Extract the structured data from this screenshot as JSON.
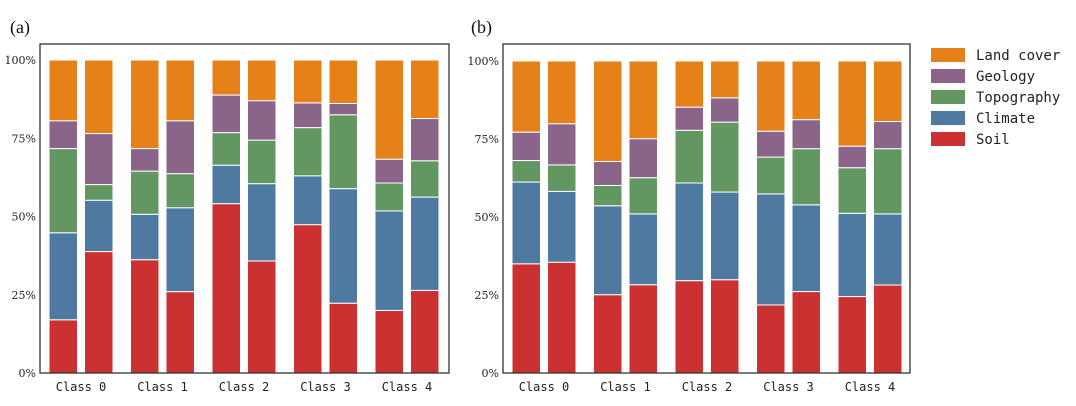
{
  "colors": {
    "Soil": "#CC3132",
    "Climate": "#4E79A1",
    "Topography": "#629762",
    "Geology": "#8A6589",
    "Land cover": "#E6811A"
  },
  "legend": {
    "entries": [
      "Land cover",
      "Geology",
      "Topography",
      "Climate",
      "Soil"
    ],
    "placement": "right"
  },
  "chart_data": [
    {
      "type": "bar",
      "stacked": true,
      "panel_label": "(a)",
      "categories": [
        "Class 0",
        "Class 1",
        "Class 2",
        "Class 3",
        "Class 4"
      ],
      "bars_per_category": 2,
      "yticks": [
        "0%",
        "25%",
        "50%",
        "75%",
        "100%"
      ],
      "ylim": [
        0,
        100
      ],
      "grid": false,
      "series": [
        {
          "name": "Soil",
          "values": [
            [
              17.0,
              38.8
            ],
            [
              36.2,
              26.0
            ],
            [
              54.1,
              35.8
            ],
            [
              47.4,
              22.3
            ],
            [
              20.0,
              26.4
            ]
          ]
        },
        {
          "name": "Climate",
          "values": [
            [
              27.8,
              16.4
            ],
            [
              14.5,
              26.8
            ],
            [
              12.3,
              24.7
            ],
            [
              15.6,
              36.6
            ],
            [
              31.8,
              29.8
            ]
          ]
        },
        {
          "name": "Topography",
          "values": [
            [
              26.9,
              5.0
            ],
            [
              13.8,
              10.9
            ],
            [
              10.4,
              13.9
            ],
            [
              15.4,
              23.6
            ],
            [
              8.9,
              11.6
            ]
          ]
        },
        {
          "name": "Geology",
          "values": [
            [
              8.9,
              16.3
            ],
            [
              7.2,
              16.9
            ],
            [
              12.0,
              12.6
            ],
            [
              7.9,
              3.6
            ],
            [
              7.6,
              13.5
            ]
          ]
        },
        {
          "name": "Land cover",
          "values": [
            [
              19.4,
              23.5
            ],
            [
              28.3,
              19.4
            ],
            [
              11.2,
              13.0
            ],
            [
              13.7,
              13.9
            ],
            [
              31.7,
              18.7
            ]
          ]
        }
      ]
    },
    {
      "type": "bar",
      "stacked": true,
      "panel_label": "(b)",
      "categories": [
        "Class 0",
        "Class 1",
        "Class 2",
        "Class 3",
        "Class 4"
      ],
      "bars_per_category": 2,
      "yticks": [
        "0%",
        "25%",
        "50%",
        "75%",
        "100%"
      ],
      "ylim": [
        0,
        100
      ],
      "grid": false,
      "series": [
        {
          "name": "Soil",
          "values": [
            [
              35.0,
              35.5
            ],
            [
              25.1,
              28.3
            ],
            [
              29.6,
              29.9
            ],
            [
              21.8,
              26.1
            ],
            [
              24.5,
              28.2
            ]
          ]
        },
        {
          "name": "Climate",
          "values": [
            [
              26.2,
              22.7
            ],
            [
              28.5,
              22.7
            ],
            [
              31.3,
              28.1
            ],
            [
              35.6,
              27.8
            ],
            [
              26.7,
              22.8
            ]
          ]
        },
        {
          "name": "Topography",
          "values": [
            [
              6.9,
              8.5
            ],
            [
              6.5,
              11.6
            ],
            [
              16.9,
              22.4
            ],
            [
              11.8,
              18.0
            ],
            [
              14.6,
              20.9
            ]
          ]
        },
        {
          "name": "Geology",
          "values": [
            [
              9.1,
              13.2
            ],
            [
              7.7,
              12.5
            ],
            [
              7.4,
              7.8
            ],
            [
              8.3,
              9.3
            ],
            [
              6.9,
              8.7
            ]
          ]
        },
        {
          "name": "Land cover",
          "values": [
            [
              22.8,
              20.1
            ],
            [
              32.2,
              24.9
            ],
            [
              14.8,
              11.8
            ],
            [
              22.5,
              18.8
            ],
            [
              27.3,
              19.4
            ]
          ]
        }
      ]
    }
  ]
}
